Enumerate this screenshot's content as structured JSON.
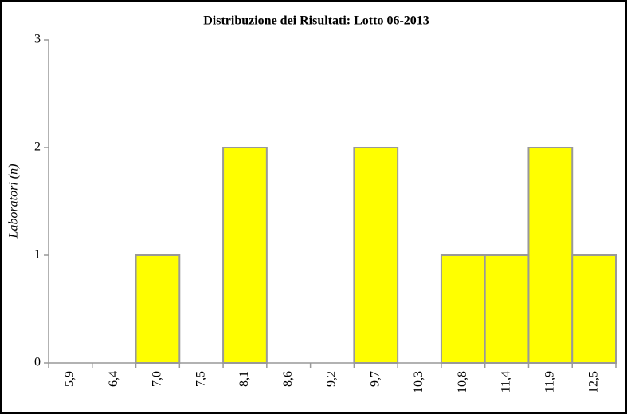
{
  "chart_data": {
    "type": "bar",
    "title": "Distribuzione dei Risultati: Lotto 06-2013",
    "y_label": "Laboratori (n)",
    "categories": [
      "5,9",
      "6,4",
      "7,0",
      "7,5",
      "8,1",
      "8,6",
      "9,2",
      "9,7",
      "10,3",
      "10,8",
      "11,4",
      "11,9",
      "12,5"
    ],
    "values": [
      0,
      0,
      1,
      0,
      2,
      0,
      0,
      2,
      0,
      1,
      1,
      2,
      1
    ],
    "color": "#ffff00",
    "ylim": [
      0,
      3
    ],
    "yticks": [
      0,
      1,
      2,
      3
    ],
    "grid": false
  }
}
